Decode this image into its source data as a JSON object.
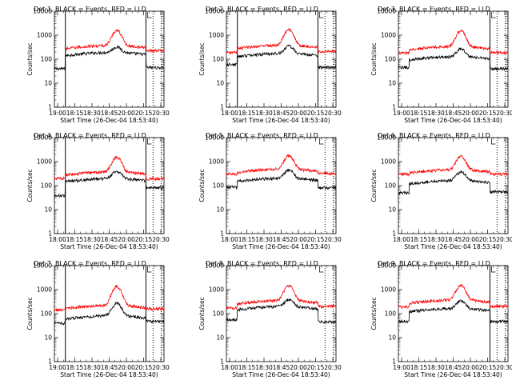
{
  "figure": {
    "colors": {
      "background": "#ffffff",
      "axes": "#000000",
      "events": "#000000",
      "lld": "#ff0000"
    }
  },
  "chart_data": [
    {
      "type": "line",
      "title": "Det 1, BLACK = Events, RED = LLD",
      "xlabel": "Start Time (26-Dec-04 18:53:40)",
      "ylabel": "Counts/sec",
      "yscale": "log",
      "ylim": [
        1,
        10000
      ],
      "x": [
        "19:00",
        "18:15",
        "18:30",
        "18:45",
        "20:00",
        "20:15",
        "20:30"
      ],
      "series": [
        {
          "name": "Events",
          "color": "#000000",
          "base_pre": 40,
          "base_mid": 165,
          "peak": 300,
          "base_post": 45,
          "sag": 0
        },
        {
          "name": "LLD",
          "color": "#ff0000",
          "base_pre": 0,
          "base_mid": 320,
          "peak": 1550,
          "base_post": 230,
          "sag": 0
        }
      ],
      "markers": {
        "solid": [
          0.1,
          0.835
        ],
        "dotted": [
          0.9,
          0.975
        ]
      }
    },
    {
      "type": "line",
      "title": "Det 2, BLACK = Events, RED = LLD",
      "xlabel": "Start Time (26-Dec-04 18:53:40)",
      "ylabel": "Counts/sec",
      "yscale": "log",
      "ylim": [
        1,
        10000
      ],
      "x": [
        "18:00",
        "18:15",
        "18:30",
        "18:45",
        "20:00",
        "20:15",
        "20:30"
      ],
      "series": [
        {
          "name": "Events",
          "color": "#000000",
          "base_pre": 60,
          "base_mid": 150,
          "peak": 330,
          "base_post": 45,
          "sag": 0
        },
        {
          "name": "LLD",
          "color": "#ff0000",
          "base_pre": 190,
          "base_mid": 330,
          "peak": 1650,
          "base_post": 210,
          "sag": 0
        }
      ],
      "markers": {
        "solid": [
          0.1,
          0.835
        ],
        "dotted": [
          0.9,
          0.975
        ]
      }
    },
    {
      "type": "line",
      "title": "Det 3, BLACK = Events, RED = LLD",
      "xlabel": "Start Time (26-Dec-04 18:53:40)",
      "ylabel": "Counts/sec",
      "yscale": "log",
      "ylim": [
        1,
        10000
      ],
      "x": [
        "19:00",
        "18:15",
        "18:30",
        "18:45",
        "20:00",
        "20:15",
        "20:30"
      ],
      "series": [
        {
          "name": "Events",
          "color": "#000000",
          "base_pre": 45,
          "base_mid": 110,
          "peak": 260,
          "base_post": 40,
          "sag": 0
        },
        {
          "name": "LLD",
          "color": "#ff0000",
          "base_pre": 180,
          "base_mid": 290,
          "peak": 1500,
          "base_post": 190,
          "sag": 0
        }
      ],
      "markers": {
        "solid": [
          0.835
        ],
        "dotted": [
          0.9,
          0.975
        ]
      }
    },
    {
      "type": "line",
      "title": "Det 4, BLACK = Events, RED = LLD",
      "xlabel": "Start Time (26-Dec-04 18:53:40)",
      "ylabel": "Counts/sec",
      "yscale": "log",
      "ylim": [
        1,
        10000
      ],
      "x": [
        "18:00",
        "18:15",
        "18:30",
        "18:45",
        "20:00",
        "20:15",
        "20:30"
      ],
      "series": [
        {
          "name": "Events",
          "color": "#000000",
          "base_pre": 38,
          "base_mid": 170,
          "peak": 380,
          "base_post": 80,
          "sag": 0
        },
        {
          "name": "LLD",
          "color": "#ff0000",
          "base_pre": 200,
          "base_mid": 320,
          "peak": 1500,
          "base_post": 190,
          "sag": 0
        }
      ],
      "markers": {
        "solid": [
          0.1,
          0.835
        ],
        "dotted": [
          0.9,
          0.975
        ]
      }
    },
    {
      "type": "line",
      "title": "Det 5, BLACK = Events, RED = LLD",
      "xlabel": "Start Time (26-Dec-04 18:53:40)",
      "ylabel": "Counts/sec",
      "yscale": "log",
      "ylim": [
        1,
        10000
      ],
      "x": [
        "18:00",
        "18:15",
        "18:30",
        "18:45",
        "20:00",
        "20:15",
        "20:30"
      ],
      "series": [
        {
          "name": "Events",
          "color": "#000000",
          "base_pre": 85,
          "base_mid": 175,
          "peak": 420,
          "base_post": 80,
          "sag": 0
        },
        {
          "name": "LLD",
          "color": "#ff0000",
          "base_pre": 310,
          "base_mid": 420,
          "peak": 1700,
          "base_post": 330,
          "sag": 0
        }
      ],
      "markers": {
        "solid": [],
        "dotted": [
          0.9,
          0.975
        ]
      }
    },
    {
      "type": "line",
      "title": "Det 6, BLACK = Events, RED = LLD",
      "xlabel": "Start Time (26-Dec-04 18:53:40)",
      "ylabel": "Counts/sec",
      "yscale": "log",
      "ylim": [
        1,
        10000
      ],
      "x": [
        "18:00",
        "18:15",
        "18:30",
        "18:45",
        "20:00",
        "20:15",
        "20:30"
      ],
      "series": [
        {
          "name": "Events",
          "color": "#000000",
          "base_pre": 50,
          "base_mid": 140,
          "peak": 350,
          "base_post": 55,
          "sag": 0
        },
        {
          "name": "LLD",
          "color": "#ff0000",
          "base_pre": 300,
          "base_mid": 400,
          "peak": 1600,
          "base_post": 300,
          "sag": 0
        }
      ],
      "markers": {
        "solid": [],
        "dotted": [
          0.9,
          0.975
        ]
      }
    },
    {
      "type": "line",
      "title": "Det 7, BLACK = Events, RED = LLD",
      "xlabel": "Start Time (26-Dec-04 18:53:40)",
      "ylabel": "Counts/sec",
      "yscale": "log",
      "ylim": [
        1,
        10000
      ],
      "x": [
        "19:00",
        "18:15",
        "18:30",
        "18:45",
        "20:00",
        "20:15",
        "20:30"
      ],
      "series": [
        {
          "name": "Events",
          "color": "#000000",
          "base_pre": 40,
          "base_mid": 70,
          "peak": 260,
          "base_post": 48,
          "sag": 0
        },
        {
          "name": "LLD",
          "color": "#ff0000",
          "base_pre": 140,
          "base_mid": 190,
          "peak": 1300,
          "base_post": 160,
          "sag": 0
        }
      ],
      "markers": {
        "solid": [
          0.1,
          0.835
        ],
        "dotted": [
          0.9,
          0.975
        ]
      }
    },
    {
      "type": "line",
      "title": "Det 8, BLACK = Events, RED = LLD",
      "xlabel": "Start Time (26-Dec-04 18:53:40)",
      "ylabel": "Counts/sec",
      "yscale": "log",
      "ylim": [
        1,
        10000
      ],
      "x": [
        "18:00",
        "18:15",
        "18:30",
        "18:45",
        "20:00",
        "20:15",
        "20:30"
      ],
      "series": [
        {
          "name": "Events",
          "color": "#000000",
          "base_pre": 55,
          "base_mid": 170,
          "peak": 360,
          "base_post": 45,
          "sag": 0
        },
        {
          "name": "LLD",
          "color": "#ff0000",
          "base_pre": 170,
          "base_mid": 300,
          "peak": 1450,
          "base_post": 200,
          "sag": 0
        }
      ],
      "markers": {
        "solid": [],
        "dotted": [
          0.9,
          0.975
        ]
      }
    },
    {
      "type": "line",
      "title": "Det 9, BLACK = Events, RED = LLD",
      "xlabel": "Start Time (26-Dec-04 18:53:40)",
      "ylabel": "Counts/sec",
      "yscale": "log",
      "ylim": [
        1,
        10000
      ],
      "x": [
        "19:00",
        "18:15",
        "18:30",
        "18:45",
        "20:00",
        "20:15",
        "20:30"
      ],
      "series": [
        {
          "name": "Events",
          "color": "#000000",
          "base_pre": 48,
          "base_mid": 140,
          "peak": 320,
          "base_post": 48,
          "sag": 0
        },
        {
          "name": "LLD",
          "color": "#ff0000",
          "base_pre": 190,
          "base_mid": 320,
          "peak": 1450,
          "base_post": 200,
          "sag": 0
        }
      ],
      "markers": {
        "solid": [
          0.835
        ],
        "dotted": [
          0.9,
          0.975
        ]
      }
    }
  ]
}
